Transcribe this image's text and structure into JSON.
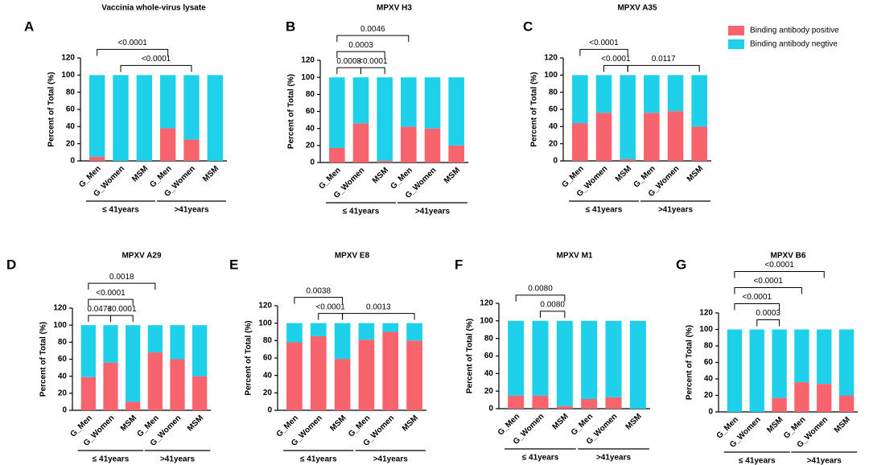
{
  "chart_data": [
    {
      "type": "bar",
      "stacked": true,
      "panel": "A",
      "title": "Vaccinia whole-virus lysate",
      "y_label": "Percent of Total (%)",
      "categories": [
        "G_Men",
        "G_Women",
        "MSM",
        "G_Men",
        "G_Women",
        "MSM"
      ],
      "series": [
        {
          "name": "Binding antibody positive",
          "color": "#f7646e",
          "values": [
            5,
            0,
            0,
            38,
            25,
            0
          ]
        },
        {
          "name": "Binding antibody negtive",
          "color": "#1fd0ea",
          "values": [
            95,
            100,
            100,
            62,
            75,
            100
          ]
        }
      ],
      "ylim": [
        0,
        120
      ],
      "yticks": [
        0,
        20,
        40,
        60,
        80,
        100,
        120
      ],
      "groups": [
        {
          "label": "≤ 41years",
          "span": [
            0,
            2
          ]
        },
        {
          "label": ">41years",
          "span": [
            3,
            5
          ]
        }
      ],
      "brackets": [
        {
          "label": "<0.0001",
          "span": [
            1,
            4
          ]
        },
        {
          "label": "<0.0001",
          "span": [
            0,
            3
          ]
        }
      ]
    },
    {
      "type": "bar",
      "stacked": true,
      "panel": "B",
      "title": "MPXV H3",
      "y_label": "Percent of Total (%)",
      "categories": [
        "G_Men",
        "G_Women",
        "MSM",
        "G_Men",
        "G_Women",
        "MSM"
      ],
      "series": [
        {
          "color": "#f7646e",
          "values": [
            17,
            46,
            2,
            42,
            40,
            20
          ]
        },
        {
          "color": "#1fd0ea",
          "values": [
            83,
            54,
            98,
            58,
            60,
            80
          ]
        }
      ],
      "ylim": [
        0,
        120
      ],
      "yticks": [
        0,
        20,
        40,
        60,
        80,
        100,
        120
      ],
      "groups": [
        {
          "label": "≤ 41years",
          "span": [
            0,
            2
          ]
        },
        {
          "label": ">41years",
          "span": [
            3,
            5
          ]
        }
      ],
      "brackets": [
        {
          "label": "0.0008",
          "span": [
            0,
            1
          ]
        },
        {
          "label": "<0.0001",
          "span": [
            1,
            2
          ]
        },
        {
          "label": "0.0003",
          "span": [
            0,
            2
          ]
        },
        {
          "label": "0.0046",
          "span": [
            0,
            3
          ]
        }
      ]
    },
    {
      "type": "bar",
      "stacked": true,
      "panel": "C",
      "title": "MPXV A35",
      "y_label": "Percent of Total (%)",
      "categories": [
        "G_Men",
        "G_Women",
        "MSM",
        "G_Men",
        "G_Women",
        "MSM"
      ],
      "series": [
        {
          "color": "#f7646e",
          "values": [
            44,
            56,
            2,
            56,
            58,
            40
          ]
        },
        {
          "color": "#1fd0ea",
          "values": [
            56,
            44,
            98,
            44,
            42,
            60
          ]
        }
      ],
      "ylim": [
        0,
        120
      ],
      "yticks": [
        0,
        20,
        40,
        60,
        80,
        100,
        120
      ],
      "groups": [
        {
          "label": "≤ 41years",
          "span": [
            0,
            2
          ]
        },
        {
          "label": ">41years",
          "span": [
            3,
            5
          ]
        }
      ],
      "brackets": [
        {
          "label": "<0.0001",
          "span": [
            1,
            2
          ]
        },
        {
          "label": "0.0117",
          "span": [
            2,
            5
          ]
        },
        {
          "label": "<0.0001",
          "span": [
            0,
            2
          ]
        }
      ]
    },
    {
      "type": "bar",
      "stacked": true,
      "panel": "D",
      "title": "MPXV A29",
      "y_label": "Percent of Total (%)",
      "categories": [
        "G_Men",
        "G_Women",
        "MSM",
        "G_Men",
        "G_Women",
        "MSM"
      ],
      "series": [
        {
          "color": "#f7646e",
          "values": [
            39,
            56,
            10,
            68,
            60,
            40
          ]
        },
        {
          "color": "#1fd0ea",
          "values": [
            61,
            44,
            90,
            32,
            40,
            60
          ]
        }
      ],
      "ylim": [
        0,
        120
      ],
      "yticks": [
        0,
        20,
        40,
        60,
        80,
        100,
        120
      ],
      "groups": [
        {
          "label": "≤ 41years",
          "span": [
            0,
            2
          ]
        },
        {
          "label": ">41years",
          "span": [
            3,
            5
          ]
        }
      ],
      "brackets": [
        {
          "label": "0.0473",
          "span": [
            0,
            1
          ]
        },
        {
          "label": "<0.0001",
          "span": [
            1,
            2
          ]
        },
        {
          "label": "<0.0001",
          "span": [
            0,
            2
          ]
        },
        {
          "label": "0.0018",
          "span": [
            0,
            3
          ]
        }
      ]
    },
    {
      "type": "bar",
      "stacked": true,
      "panel": "E",
      "title": "MPXV E8",
      "y_label": "Percent of Total (%)",
      "categories": [
        "G_Men",
        "G_Women",
        "MSM",
        "G_Men",
        "G_Women",
        "MSM"
      ],
      "series": [
        {
          "color": "#f7646e",
          "values": [
            78,
            85,
            59,
            81,
            90,
            80
          ]
        },
        {
          "color": "#1fd0ea",
          "values": [
            22,
            15,
            41,
            19,
            10,
            20
          ]
        }
      ],
      "ylim": [
        0,
        120
      ],
      "yticks": [
        0,
        20,
        40,
        60,
        80,
        100,
        120
      ],
      "groups": [
        {
          "label": "≤ 41years",
          "span": [
            0,
            2
          ]
        },
        {
          "label": ">41years",
          "span": [
            3,
            5
          ]
        }
      ],
      "brackets": [
        {
          "label": "<0.0001",
          "span": [
            1,
            2
          ]
        },
        {
          "label": "0.0038",
          "span": [
            0,
            2
          ]
        },
        {
          "label": "0.0013",
          "span": [
            2,
            5
          ]
        }
      ]
    },
    {
      "type": "bar",
      "stacked": true,
      "panel": "F",
      "title": "MPXV M1",
      "y_label": "Percent of Total (%)",
      "categories": [
        "G_Men",
        "G_Women",
        "MSM",
        "G_Men",
        "G_Women",
        "MSM"
      ],
      "series": [
        {
          "color": "#f7646e",
          "values": [
            15,
            15,
            3,
            11,
            13,
            0
          ]
        },
        {
          "color": "#1fd0ea",
          "values": [
            85,
            85,
            97,
            89,
            87,
            100
          ]
        }
      ],
      "ylim": [
        0,
        120
      ],
      "yticks": [
        0,
        20,
        40,
        60,
        80,
        100,
        120
      ],
      "groups": [
        {
          "label": "≤ 41years",
          "span": [
            0,
            2
          ]
        },
        {
          "label": ">41years",
          "span": [
            3,
            5
          ]
        }
      ],
      "brackets": [
        {
          "label": "0.0080",
          "span": [
            1,
            2
          ]
        },
        {
          "label": "0.0080",
          "span": [
            0,
            2
          ]
        }
      ]
    },
    {
      "type": "bar",
      "stacked": true,
      "panel": "G",
      "title": "MPXV B6",
      "y_label": "Percent of Total (%)",
      "categories": [
        "G_Men",
        "G_Women",
        "MSM",
        "G_Men",
        "G_Women",
        "MSM"
      ],
      "series": [
        {
          "color": "#f7646e",
          "values": [
            0,
            0,
            17,
            36,
            34,
            20
          ]
        },
        {
          "color": "#1fd0ea",
          "values": [
            100,
            100,
            83,
            64,
            66,
            80
          ]
        }
      ],
      "ylim": [
        0,
        120
      ],
      "yticks": [
        0,
        20,
        40,
        60,
        80,
        100,
        120
      ],
      "groups": [
        {
          "label": "≤ 41years",
          "span": [
            0,
            2
          ]
        },
        {
          "label": ">41years",
          "span": [
            3,
            5
          ]
        }
      ],
      "brackets": [
        {
          "label": "0.0003",
          "span": [
            1,
            2
          ]
        },
        {
          "label": "<0.0001",
          "span": [
            0,
            2
          ]
        },
        {
          "label": "<0.0001",
          "span": [
            0,
            3
          ]
        },
        {
          "label": "<0.0001",
          "span": [
            0,
            4
          ]
        }
      ]
    }
  ]
}
